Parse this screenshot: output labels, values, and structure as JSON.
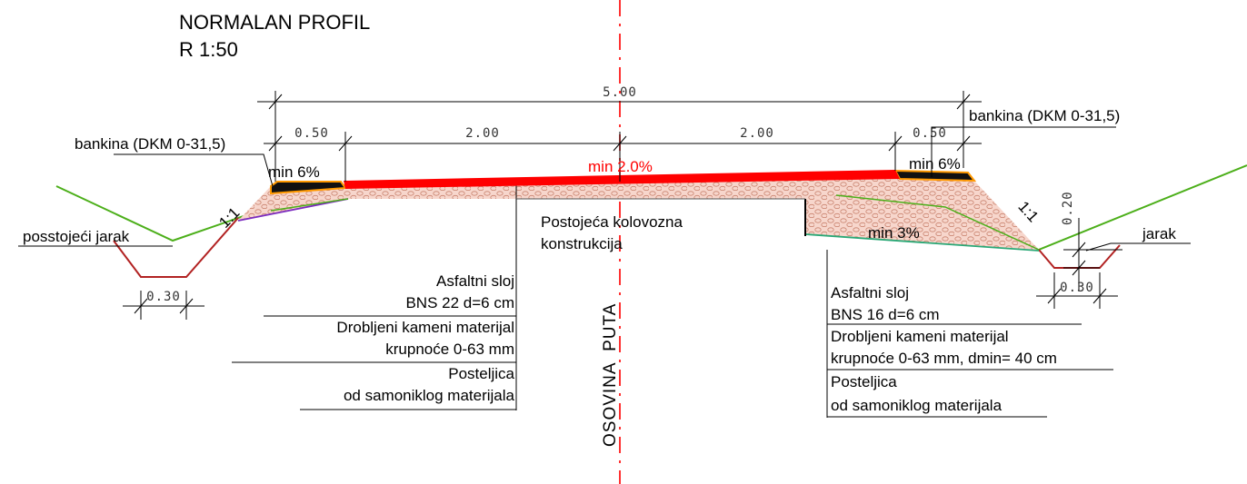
{
  "title": {
    "line1": "NORMALAN PROFIL",
    "line2": "R 1:50"
  },
  "dimensions": {
    "total_width": "5.00",
    "left_shoulder": "0.50",
    "left_lane": "2.00",
    "right_lane": "2.00",
    "right_shoulder": "0.50",
    "left_ditch_width": "0.30",
    "right_ditch_width": "0.30",
    "right_ditch_depth": "0.20"
  },
  "slopes": {
    "left_shoulder": "min 6%",
    "carriageway": "min 2.0%",
    "right_shoulder": "min 6%",
    "right_subgrade": "min 3%",
    "left_embankment": "1:1",
    "right_embankment": "1:1"
  },
  "labels": {
    "left_shoulder_material": "bankina (DKM 0-31,5)",
    "right_shoulder_material": "bankina (DKM 0-31,5)",
    "left_ditch": "posstojeći jarak",
    "right_ditch": "jarak",
    "existing_pavement_line1": "Postojeća kolovozna",
    "existing_pavement_line2": "konstrukcija",
    "axis": "OSOVINA  PUTA"
  },
  "left_layers": [
    [
      "Asfaltni sloj",
      "BNS 22 d=6 cm"
    ],
    [
      "Drobljeni kameni materijal",
      "krupnoće 0-63 mm"
    ],
    [
      "Posteljica",
      "od samoniklog materijala"
    ]
  ],
  "right_layers": [
    [
      "Asfaltni sloj",
      "BNS 16 d=6 cm"
    ],
    [
      "Drobljeni kameni materijal",
      "krupnoće 0-63 mm, dmin= 40 cm"
    ],
    [
      "Posteljica",
      "od samoniklog materijala"
    ]
  ],
  "colors": {
    "asphalt": "#ff0000",
    "shoulder_asphalt": "#111111",
    "shoulder_edge": "#ff9900",
    "gravel_fill": "#f7d6cc",
    "gravel_pattern": "#c9836f",
    "terrain": "#4caf1a",
    "ditch": "#b22222",
    "axis": "#ff0000",
    "subgrade_left": "#7b2cbf",
    "subgrade_right": "#2aa876"
  }
}
